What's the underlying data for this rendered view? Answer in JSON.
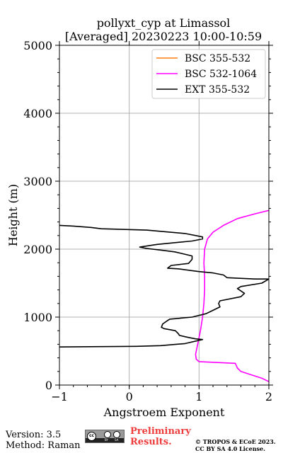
{
  "chart_data": {
    "type": "line",
    "title": "pollyxt_cyp at Limassol",
    "subtitle": "[Averaged] 20230223 10:00-10:59",
    "xlabel": "Angstroem Exponent",
    "ylabel": "Height (m)",
    "xlim": [
      -1,
      2
    ],
    "ylim": [
      0,
      5000
    ],
    "xticks": [
      -1,
      0,
      1,
      2
    ],
    "yticks": [
      0,
      1000,
      2000,
      3000,
      4000,
      5000
    ],
    "grid": true,
    "legend_position": "top-right",
    "series": [
      {
        "name": "BSC 355-532",
        "color": "#ff7f0e",
        "points": []
      },
      {
        "name": "BSC 532-1064",
        "color": "#ff00ff",
        "points": [
          [
            2.0,
            50
          ],
          [
            1.9,
            100
          ],
          [
            1.75,
            150
          ],
          [
            1.6,
            200
          ],
          [
            1.55,
            250
          ],
          [
            1.52,
            320
          ],
          [
            1.3,
            330
          ],
          [
            1.0,
            345
          ],
          [
            0.96,
            380
          ],
          [
            0.95,
            450
          ],
          [
            0.98,
            600
          ],
          [
            1.02,
            800
          ],
          [
            1.05,
            1000
          ],
          [
            1.07,
            1200
          ],
          [
            1.08,
            1400
          ],
          [
            1.08,
            1600
          ],
          [
            1.07,
            1800
          ],
          [
            1.08,
            2000
          ],
          [
            1.12,
            2150
          ],
          [
            1.2,
            2250
          ],
          [
            1.35,
            2350
          ],
          [
            1.55,
            2450
          ],
          [
            1.8,
            2520
          ],
          [
            2.0,
            2570
          ]
        ]
      },
      {
        "name": "EXT 355-532",
        "color": "#000000",
        "points": [
          [
            -1.0,
            560
          ],
          [
            0.1,
            570
          ],
          [
            0.45,
            580
          ],
          [
            0.8,
            610
          ],
          [
            1.05,
            670
          ],
          [
            0.95,
            680
          ],
          [
            0.85,
            700
          ],
          [
            0.72,
            730
          ],
          [
            0.7,
            760
          ],
          [
            0.66,
            800
          ],
          [
            0.5,
            830
          ],
          [
            0.46,
            850
          ],
          [
            0.48,
            900
          ],
          [
            0.55,
            950
          ],
          [
            0.58,
            970
          ],
          [
            0.9,
            1000
          ],
          [
            1.1,
            1050
          ],
          [
            1.2,
            1100
          ],
          [
            1.3,
            1150
          ],
          [
            1.28,
            1200
          ],
          [
            1.3,
            1240
          ],
          [
            1.6,
            1300
          ],
          [
            1.65,
            1350
          ],
          [
            1.55,
            1420
          ],
          [
            1.6,
            1450
          ],
          [
            1.9,
            1500
          ],
          [
            2.0,
            1560
          ],
          [
            1.8,
            1560
          ],
          [
            1.4,
            1580
          ],
          [
            1.35,
            1620
          ],
          [
            1.2,
            1650
          ],
          [
            1.0,
            1670
          ],
          [
            0.7,
            1710
          ],
          [
            0.55,
            1720
          ],
          [
            0.6,
            1760
          ],
          [
            0.85,
            1790
          ],
          [
            0.9,
            1850
          ],
          [
            0.9,
            1900
          ],
          [
            0.65,
            1960
          ],
          [
            0.5,
            1980
          ],
          [
            0.25,
            2010
          ],
          [
            0.15,
            2030
          ],
          [
            0.4,
            2070
          ],
          [
            0.9,
            2120
          ],
          [
            1.05,
            2150
          ],
          [
            1.05,
            2180
          ],
          [
            0.8,
            2230
          ],
          [
            0.25,
            2280
          ],
          [
            -0.4,
            2300
          ],
          [
            -0.55,
            2320
          ],
          [
            -0.8,
            2340
          ],
          [
            -1.0,
            2350
          ]
        ]
      }
    ]
  },
  "footer": {
    "version": "Version: 3.5",
    "method": "Method: Raman",
    "license_badge_icon": "cc-by-sa-badge-icon",
    "preliminary_line1": "Preliminary",
    "preliminary_line2": "Results.",
    "copyright_line1": "© TROPOS & ECoE 2023.",
    "copyright_line2": "CC BY SA 4.0 License."
  }
}
